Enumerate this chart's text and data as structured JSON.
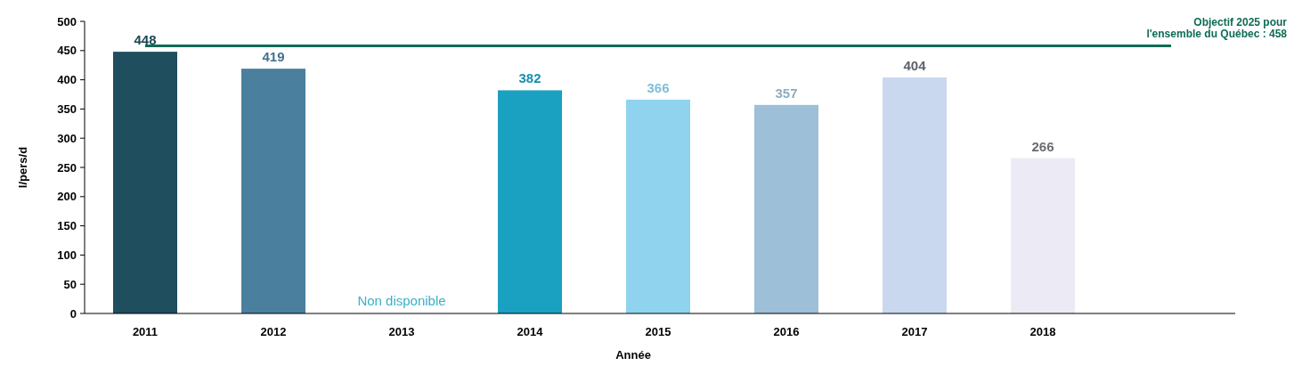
{
  "chart_data": {
    "type": "bar",
    "xlabel": "Année",
    "ylabel": "l/pers/d",
    "categories": [
      "2011",
      "2012",
      "2013",
      "2014",
      "2015",
      "2016",
      "2017",
      "2018"
    ],
    "values": [
      448,
      419,
      null,
      382,
      366,
      357,
      404,
      266
    ],
    "colors": [
      "#1f4e5f",
      "#4a7f9e",
      "#3ab0c8",
      "#1aa0c0",
      "#8fd3ef",
      "#9dbfd8",
      "#c9d8ef",
      "#ecebf5"
    ],
    "value_labels": [
      "448",
      "419",
      null,
      "382",
      "366",
      "357",
      "404",
      "266"
    ],
    "ylim": [
      0,
      500
    ],
    "yticks": [
      0,
      50,
      100,
      150,
      200,
      250,
      300,
      350,
      400,
      450,
      500
    ],
    "ref_lines": [
      {
        "axis": "y",
        "value": 458,
        "label": "Objectif 2025 pour\nl'ensemble du Québec : 458",
        "color": "#0e6b55"
      }
    ],
    "annotations": [
      "Non disponible"
    ],
    "grid": false
  }
}
